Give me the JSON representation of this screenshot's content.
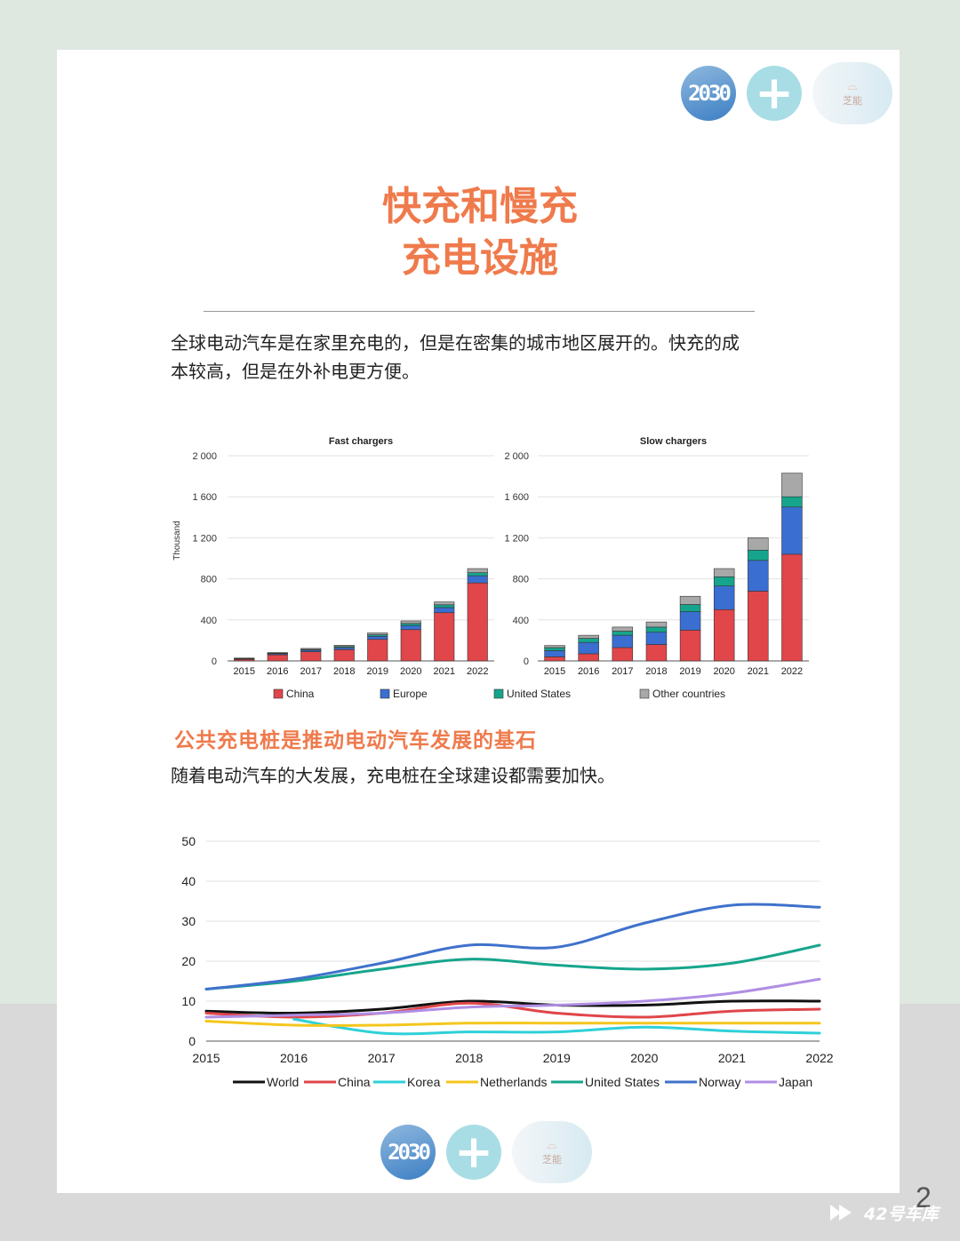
{
  "header": {
    "logo_2030": "2030",
    "logo_plus": "+",
    "logo_brand_text": "芝能"
  },
  "title": {
    "line1": "快充和慢充",
    "line2": "充电设施"
  },
  "intro": {
    "line1": "全球电动汽车是在家里充电的，但是在密集的城市地区展开的。快充的成",
    "line2": "本较高，但是在外补电更方便。"
  },
  "section2": {
    "heading": "公共充电桩是推动电动汽车发展的基石",
    "text": "随着电动汽车的大发展，充电桩在全球建设都需要加快。"
  },
  "page_number": "2",
  "watermark": "42号车库",
  "colors": {
    "accent": "#ef7a4c",
    "china": "#e0464a",
    "europe": "#3a6fd1",
    "united_states": "#16a58c",
    "other": "#a8a8a8",
    "world": "#111111",
    "korea": "#2ed0d8",
    "netherlands": "#f5c61d",
    "norway": "#3f71cc",
    "japan": "#b08ee4"
  },
  "chart_data": [
    {
      "type": "bar",
      "stacked": true,
      "title": "Fast  chargers",
      "ylabel": "Thousand",
      "categories": [
        "2015",
        "2016",
        "2017",
        "2018",
        "2019",
        "2020",
        "2021",
        "2022"
      ],
      "ylim": [
        0,
        2000
      ],
      "yticks": [
        0,
        400,
        800,
        1200,
        1600,
        2000
      ],
      "ytick_labels": [
        "0",
        "400",
        "800",
        "1 200",
        "1 600",
        "2 000"
      ],
      "series": [
        {
          "name": "China",
          "values": [
            15,
            60,
            90,
            110,
            210,
            305,
            470,
            760
          ]
        },
        {
          "name": "Europe",
          "values": [
            5,
            10,
            15,
            20,
            30,
            40,
            50,
            70
          ]
        },
        {
          "name": "United States",
          "values": [
            3,
            5,
            7,
            10,
            15,
            20,
            27,
            30
          ]
        },
        {
          "name": "Other countries",
          "values": [
            5,
            7,
            10,
            13,
            18,
            25,
            28,
            40
          ]
        }
      ]
    },
    {
      "type": "bar",
      "stacked": true,
      "title": "Slow chargers",
      "categories": [
        "2015",
        "2016",
        "2017",
        "2018",
        "2019",
        "2020",
        "2021",
        "2022"
      ],
      "ylim": [
        0,
        2000
      ],
      "yticks": [
        0,
        400,
        800,
        1200,
        1600,
        2000
      ],
      "ytick_labels": [
        "0",
        "400",
        "800",
        "1 200",
        "1 600",
        "2 000"
      ],
      "series": [
        {
          "name": "China",
          "values": [
            40,
            70,
            130,
            160,
            300,
            500,
            680,
            1040
          ]
        },
        {
          "name": "Europe",
          "values": [
            60,
            110,
            120,
            120,
            180,
            230,
            300,
            460
          ]
        },
        {
          "name": "United States",
          "values": [
            30,
            40,
            40,
            50,
            70,
            90,
            100,
            100
          ]
        },
        {
          "name": "Other countries",
          "values": [
            20,
            30,
            40,
            50,
            80,
            80,
            120,
            230
          ]
        }
      ]
    },
    {
      "type": "line",
      "x": [
        "2015",
        "2016",
        "2017",
        "2018",
        "2019",
        "2020",
        "2021",
        "2022"
      ],
      "ylim": [
        0,
        50
      ],
      "yticks": [
        0,
        10,
        20,
        30,
        40,
        50
      ],
      "series": [
        {
          "name": "World",
          "values": [
            7.5,
            7,
            8,
            10,
            9,
            9,
            10,
            10
          ]
        },
        {
          "name": "China",
          "values": [
            7,
            6,
            7,
            9.5,
            7,
            6,
            7.5,
            8
          ]
        },
        {
          "name": "Korea",
          "values": [
            null,
            5.5,
            2,
            2.3,
            2.3,
            3.5,
            2.5,
            2
          ]
        },
        {
          "name": "Netherlands",
          "values": [
            5,
            4,
            4,
            4.5,
            4.5,
            4.5,
            4.5,
            4.5
          ]
        },
        {
          "name": "United States",
          "values": [
            13,
            15,
            18,
            20.5,
            19,
            18,
            19.5,
            24
          ]
        },
        {
          "name": "Norway",
          "values": [
            13,
            15.5,
            19.5,
            24,
            23.5,
            29.5,
            34,
            33.5
          ]
        },
        {
          "name": "Japan",
          "values": [
            6,
            6.5,
            7,
            8.5,
            9,
            10,
            12,
            15.5
          ]
        }
      ]
    }
  ]
}
